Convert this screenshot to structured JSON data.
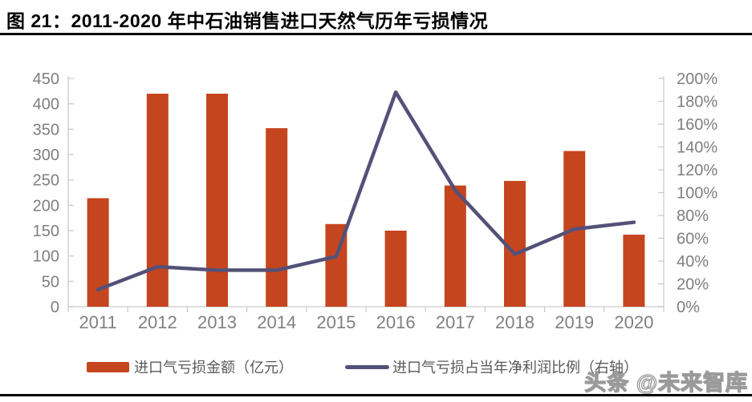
{
  "header": {
    "title": "图 21：2011-2020 年中石油销售进口天然气历年亏损情况"
  },
  "watermark": {
    "text": "头条 @未来智库"
  },
  "colors": {
    "bar": "#C5451F",
    "line": "#545178",
    "axis_line": "#D3D3D3",
    "tick": "#C9C9C9",
    "axis_text": "#7F7F7F",
    "x_axis_text": "#808080",
    "legend_text": "#595959",
    "rule": "#000000"
  },
  "chart_data": {
    "type": "bar+line combo",
    "title": "图 21：2011-2020 年中石油销售进口天然气历年亏损情况",
    "categories": [
      "2011",
      "2012",
      "2013",
      "2014",
      "2015",
      "2016",
      "2017",
      "2018",
      "2019",
      "2020"
    ],
    "series": [
      {
        "name": "进口气亏损金额（亿元）",
        "type": "bar",
        "axis": "left",
        "values": [
          214,
          420,
          420,
          352,
          163,
          150,
          239,
          248,
          307,
          142
        ]
      },
      {
        "name": "进口气亏损占当年净利润比例（右轴）",
        "type": "line",
        "axis": "right",
        "values_pct": [
          15,
          35,
          32,
          32,
          44,
          188,
          102,
          46,
          68,
          74
        ]
      }
    ],
    "left_axis": {
      "min": 0,
      "max": 450,
      "step": 50,
      "ticks": [
        "0",
        "50",
        "100",
        "150",
        "200",
        "250",
        "300",
        "350",
        "400",
        "450"
      ]
    },
    "right_axis": {
      "min": 0,
      "max": 200,
      "step": 20,
      "ticks": [
        "0%",
        "20%",
        "40%",
        "60%",
        "80%",
        "100%",
        "120%",
        "140%",
        "160%",
        "180%",
        "200%"
      ]
    },
    "grid": false,
    "legend_position": "bottom"
  }
}
